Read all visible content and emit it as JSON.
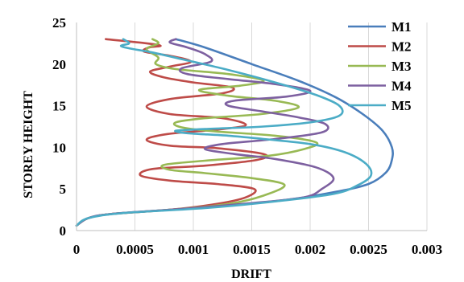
{
  "chart_data": {
    "type": "line",
    "xlabel": "DRIFT",
    "ylabel": "STOREY HEIGHT",
    "xlim": [
      0,
      0.003
    ],
    "ylim": [
      0,
      25
    ],
    "xticks": [
      "0",
      "0.0005",
      "0.001",
      "0.0015",
      "0.002",
      "0.0025",
      "0.003"
    ],
    "yticks": [
      "0",
      "5",
      "10",
      "15",
      "20",
      "25"
    ],
    "grid": "vertical",
    "legend": "right",
    "series": [
      {
        "name": "M1",
        "color": "#4a7ebb",
        "points": [
          [
            0.0,
            0.6
          ],
          [
            0.0001,
            1.5
          ],
          [
            0.0003,
            2.0
          ],
          [
            0.0008,
            2.5
          ],
          [
            0.0013,
            3.0
          ],
          [
            0.0018,
            3.7
          ],
          [
            0.0022,
            4.6
          ],
          [
            0.0025,
            5.6
          ],
          [
            0.00265,
            7.0
          ],
          [
            0.0027,
            8.5
          ],
          [
            0.0027,
            10.0
          ],
          [
            0.00262,
            12.0
          ],
          [
            0.00245,
            14.0
          ],
          [
            0.00222,
            16.0
          ],
          [
            0.0019,
            18.0
          ],
          [
            0.0015,
            20.0
          ],
          [
            0.0011,
            22.0
          ],
          [
            0.00085,
            23.0
          ]
        ]
      },
      {
        "name": "M2",
        "color": "#be4b48",
        "points": [
          [
            0.0,
            0.6
          ],
          [
            0.0001,
            1.5
          ],
          [
            0.0003,
            2.0
          ],
          [
            0.0008,
            2.5
          ],
          [
            0.0012,
            3.2
          ],
          [
            0.00145,
            4.0
          ],
          [
            0.00152,
            5.0
          ],
          [
            0.0012,
            5.6
          ],
          [
            0.0008,
            6.0
          ],
          [
            0.00055,
            6.6
          ],
          [
            0.00065,
            7.4
          ],
          [
            0.0011,
            7.8
          ],
          [
            0.00155,
            8.5
          ],
          [
            0.0016,
            9.2
          ],
          [
            0.0012,
            9.9
          ],
          [
            0.0008,
            10.2
          ],
          [
            0.0006,
            10.9
          ],
          [
            0.00078,
            11.6
          ],
          [
            0.00125,
            12.2
          ],
          [
            0.00145,
            12.7
          ],
          [
            0.00125,
            13.5
          ],
          [
            0.0008,
            14.0
          ],
          [
            0.0006,
            14.9
          ],
          [
            0.0008,
            15.8
          ],
          [
            0.00125,
            16.5
          ],
          [
            0.00133,
            17.2
          ],
          [
            0.001,
            17.8
          ],
          [
            0.00075,
            18.4
          ],
          [
            0.00063,
            19.1
          ],
          [
            0.0008,
            19.7
          ],
          [
            0.00098,
            20.3
          ],
          [
            0.0008,
            21.0
          ],
          [
            0.00058,
            21.5
          ],
          [
            0.00062,
            22.0
          ],
          [
            0.00072,
            22.2
          ],
          [
            0.0006,
            22.5
          ],
          [
            0.00025,
            23.0
          ]
        ]
      },
      {
        "name": "M3",
        "color": "#98b954",
        "points": [
          [
            0.0,
            0.6
          ],
          [
            0.0001,
            1.5
          ],
          [
            0.0003,
            2.0
          ],
          [
            0.0008,
            2.5
          ],
          [
            0.0013,
            3.2
          ],
          [
            0.0016,
            4.2
          ],
          [
            0.00178,
            5.5
          ],
          [
            0.0015,
            6.3
          ],
          [
            0.0011,
            6.9
          ],
          [
            0.0008,
            7.3
          ],
          [
            0.00075,
            7.9
          ],
          [
            0.0011,
            8.4
          ],
          [
            0.00165,
            9.0
          ],
          [
            0.00195,
            9.8
          ],
          [
            0.00205,
            10.6
          ],
          [
            0.0017,
            11.4
          ],
          [
            0.0012,
            11.9
          ],
          [
            0.0009,
            12.4
          ],
          [
            0.00085,
            13.0
          ],
          [
            0.0011,
            13.5
          ],
          [
            0.00158,
            14.0
          ],
          [
            0.0019,
            14.8
          ],
          [
            0.0017,
            15.6
          ],
          [
            0.0013,
            16.2
          ],
          [
            0.00105,
            16.9
          ],
          [
            0.0014,
            17.4
          ],
          [
            0.0016,
            18.0
          ],
          [
            0.0013,
            18.8
          ],
          [
            0.00085,
            19.4
          ],
          [
            0.00068,
            20.0
          ],
          [
            0.0007,
            20.8
          ],
          [
            0.0006,
            21.8
          ],
          [
            0.0007,
            22.5
          ],
          [
            0.00065,
            23.0
          ]
        ]
      },
      {
        "name": "M4",
        "color": "#7d60a0",
        "points": [
          [
            0.0,
            0.6
          ],
          [
            0.0001,
            1.5
          ],
          [
            0.0003,
            2.0
          ],
          [
            0.0009,
            2.6
          ],
          [
            0.0015,
            3.3
          ],
          [
            0.00195,
            4.0
          ],
          [
            0.0021,
            5.0
          ],
          [
            0.0022,
            6.3
          ],
          [
            0.00205,
            7.6
          ],
          [
            0.0017,
            8.6
          ],
          [
            0.00135,
            9.2
          ],
          [
            0.0011,
            9.8
          ],
          [
            0.00125,
            10.4
          ],
          [
            0.0017,
            11.0
          ],
          [
            0.0021,
            11.8
          ],
          [
            0.00213,
            12.8
          ],
          [
            0.0019,
            13.6
          ],
          [
            0.0016,
            14.3
          ],
          [
            0.0013,
            15.0
          ],
          [
            0.00135,
            15.6
          ],
          [
            0.0018,
            16.1
          ],
          [
            0.002,
            16.8
          ],
          [
            0.0017,
            17.6
          ],
          [
            0.0013,
            18.2
          ],
          [
            0.00095,
            18.8
          ],
          [
            0.0009,
            19.5
          ],
          [
            0.00115,
            20.3
          ],
          [
            0.0011,
            21.2
          ],
          [
            0.00095,
            22.0
          ],
          [
            0.0008,
            22.6
          ],
          [
            0.00085,
            23.0
          ]
        ]
      },
      {
        "name": "M5",
        "color": "#4bacc6",
        "points": [
          [
            0.0,
            0.6
          ],
          [
            0.0001,
            1.5
          ],
          [
            0.0004,
            2.1
          ],
          [
            0.0011,
            2.7
          ],
          [
            0.0017,
            3.5
          ],
          [
            0.0022,
            4.4
          ],
          [
            0.0024,
            5.4
          ],
          [
            0.00252,
            6.6
          ],
          [
            0.00248,
            8.0
          ],
          [
            0.0023,
            9.4
          ],
          [
            0.002,
            10.4
          ],
          [
            0.0016,
            11.0
          ],
          [
            0.0013,
            11.4
          ],
          [
            0.00095,
            11.7
          ],
          [
            0.00085,
            12.0
          ],
          [
            0.0011,
            12.2
          ],
          [
            0.0016,
            12.5
          ],
          [
            0.002,
            13.0
          ],
          [
            0.00225,
            13.8
          ],
          [
            0.00225,
            15.0
          ],
          [
            0.00205,
            16.3
          ],
          [
            0.0017,
            17.8
          ],
          [
            0.0013,
            19.3
          ],
          [
            0.0009,
            20.6
          ],
          [
            0.00065,
            21.4
          ],
          [
            0.00045,
            21.9
          ],
          [
            0.00038,
            22.2
          ],
          [
            0.00045,
            22.5
          ],
          [
            0.0004,
            23.0
          ]
        ]
      }
    ]
  }
}
